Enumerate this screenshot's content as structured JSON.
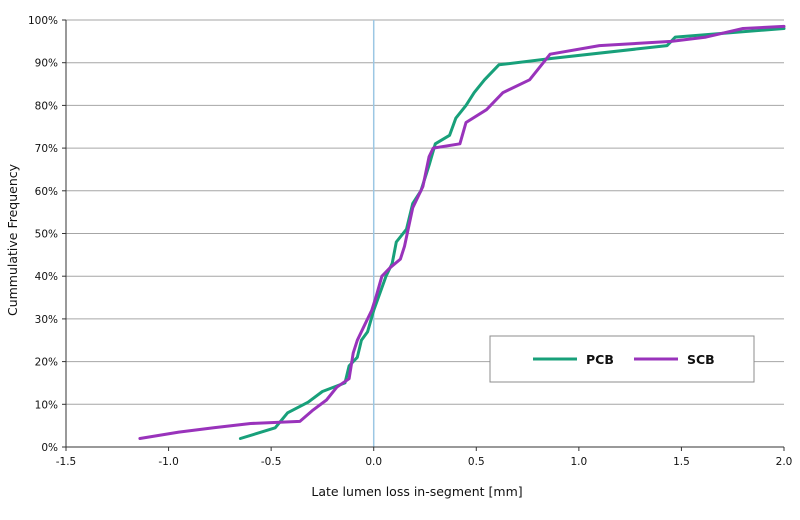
{
  "chart_data": {
    "type": "line",
    "xlabel": "Late lumen loss in-segment [mm]",
    "ylabel": "Cummulative Frequency",
    "xlim": [
      -1.5,
      2.0
    ],
    "ylim": [
      0,
      100
    ],
    "x_ticks": [
      -1.5,
      -1.0,
      -0.5,
      0.0,
      0.5,
      1.0,
      1.5,
      2.0
    ],
    "x_tick_labels": [
      "-1.5",
      "-1.0",
      "-0.5",
      "0.0",
      "0.5",
      "1.0",
      "1.5",
      "2.0"
    ],
    "y_ticks": [
      0,
      10,
      20,
      30,
      40,
      50,
      60,
      70,
      80,
      90,
      100
    ],
    "y_tick_labels": [
      "0%",
      "10%",
      "20%",
      "30%",
      "40%",
      "50%",
      "60%",
      "70%",
      "80%",
      "90%",
      "100%"
    ],
    "grid": "horizontal",
    "reference_line_x": 0.0,
    "legend_position": "bottom-right",
    "series": [
      {
        "name": "PCB",
        "color": "#18a07a",
        "points": [
          [
            -0.65,
            2
          ],
          [
            -0.48,
            4.5
          ],
          [
            -0.42,
            8
          ],
          [
            -0.32,
            10.5
          ],
          [
            -0.25,
            13
          ],
          [
            -0.14,
            15
          ],
          [
            -0.12,
            19
          ],
          [
            -0.08,
            21
          ],
          [
            -0.06,
            25
          ],
          [
            -0.03,
            27
          ],
          [
            0.0,
            32
          ],
          [
            0.03,
            36
          ],
          [
            0.06,
            40
          ],
          [
            0.09,
            43
          ],
          [
            0.11,
            48
          ],
          [
            0.16,
            51
          ],
          [
            0.19,
            57
          ],
          [
            0.23,
            60
          ],
          [
            0.27,
            66
          ],
          [
            0.3,
            71
          ],
          [
            0.37,
            73
          ],
          [
            0.4,
            77
          ],
          [
            0.45,
            80
          ],
          [
            0.49,
            83
          ],
          [
            0.54,
            86
          ],
          [
            0.61,
            89.5
          ],
          [
            0.87,
            91
          ],
          [
            1.43,
            94
          ],
          [
            1.47,
            96
          ],
          [
            2.0,
            98
          ]
        ]
      },
      {
        "name": "SCB",
        "color": "#9933bb",
        "points": [
          [
            -1.14,
            2
          ],
          [
            -0.95,
            3.5
          ],
          [
            -0.78,
            4.5
          ],
          [
            -0.6,
            5.5
          ],
          [
            -0.36,
            6
          ],
          [
            -0.3,
            8.5
          ],
          [
            -0.23,
            11
          ],
          [
            -0.18,
            14
          ],
          [
            -0.12,
            16
          ],
          [
            -0.1,
            22
          ],
          [
            -0.08,
            25
          ],
          [
            -0.04,
            29
          ],
          [
            -0.01,
            32
          ],
          [
            0.01,
            35
          ],
          [
            0.04,
            40
          ],
          [
            0.08,
            42
          ],
          [
            0.13,
            44
          ],
          [
            0.15,
            47
          ],
          [
            0.19,
            56
          ],
          [
            0.24,
            61
          ],
          [
            0.27,
            68
          ],
          [
            0.29,
            70
          ],
          [
            0.42,
            71
          ],
          [
            0.45,
            76
          ],
          [
            0.55,
            79
          ],
          [
            0.63,
            83
          ],
          [
            0.76,
            86
          ],
          [
            0.86,
            92
          ],
          [
            1.1,
            94
          ],
          [
            1.45,
            95
          ],
          [
            1.62,
            96
          ],
          [
            1.8,
            98
          ],
          [
            2.0,
            98.5
          ]
        ]
      }
    ]
  }
}
